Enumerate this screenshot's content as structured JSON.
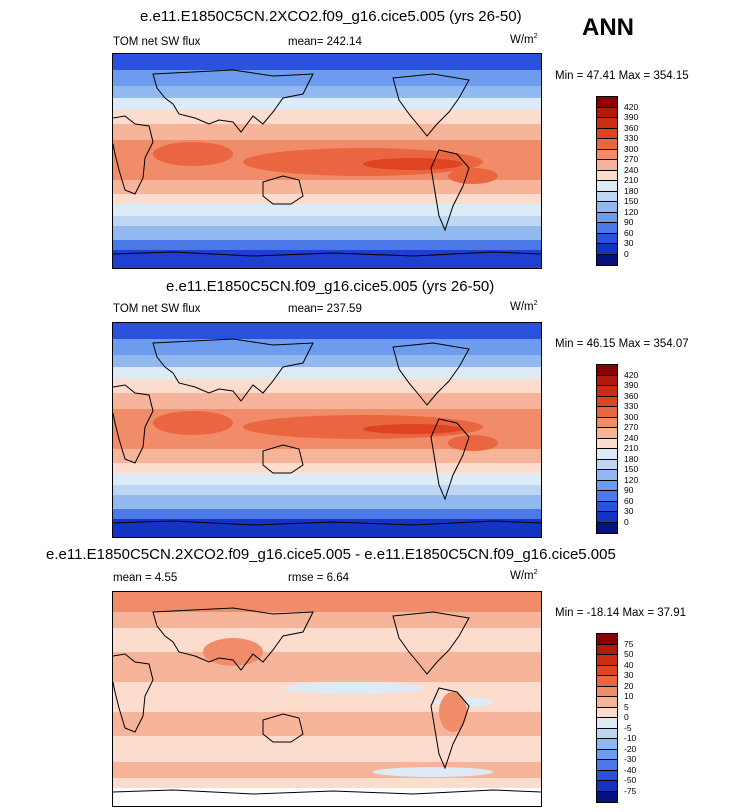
{
  "ann": "ANN",
  "panels": [
    {
      "title": "e.e11.E1850C5CN.2XCO2.f09_g16.cice5.005 (yrs 26-50)",
      "left": "TOM net SW flux",
      "center": "mean= 242.14",
      "units": "W/m",
      "units_sup": "2",
      "minmax": "Min = 47.41 Max = 354.15",
      "levels": [
        "420",
        "390",
        "360",
        "330",
        "300",
        "270",
        "240",
        "210",
        "180",
        "150",
        "120",
        "90",
        "60",
        "30",
        "0"
      ],
      "colors": [
        "#8b0000",
        "#b01a0c",
        "#cc2c14",
        "#df4422",
        "#ea6640",
        "#f18c6a",
        "#f6b59b",
        "#fcdccd",
        "#dcebf5",
        "#bdd6f2",
        "#91b9f0",
        "#6d9bed",
        "#4b79e8",
        "#2b52dc",
        "#1433c2",
        "#06127e"
      ]
    },
    {
      "title": "e.e11.E1850C5CN.f09_g16.cice5.005 (yrs 26-50)",
      "left": "TOM net SW flux",
      "center": "mean= 237.59",
      "units": "W/m",
      "units_sup": "2",
      "minmax": "Min = 46.15 Max = 354.07",
      "levels": [
        "420",
        "390",
        "360",
        "330",
        "300",
        "270",
        "240",
        "210",
        "180",
        "150",
        "120",
        "90",
        "60",
        "30",
        "0"
      ],
      "colors": [
        "#8b0000",
        "#b01a0c",
        "#cc2c14",
        "#df4422",
        "#ea6640",
        "#f18c6a",
        "#f6b59b",
        "#fcdccd",
        "#dcebf5",
        "#bdd6f2",
        "#91b9f0",
        "#6d9bed",
        "#4b79e8",
        "#2b52dc",
        "#1433c2",
        "#06127e"
      ]
    },
    {
      "title": "e.e11.E1850C5CN.2XCO2.f09_g16.cice5.005 - e.e11.E1850C5CN.f09_g16.cice5.005",
      "left": "mean =   4.55",
      "center": "rmse =   6.64",
      "units": "W/m",
      "units_sup": "2",
      "minmax": "Min = -18.14 Max =  37.91",
      "levels": [
        "75",
        "50",
        "40",
        "30",
        "20",
        "10",
        "5",
        "0",
        "-5",
        "-10",
        "-20",
        "-30",
        "-40",
        "-50",
        "-75"
      ],
      "colors": [
        "#8b0000",
        "#b01a0c",
        "#cc2c14",
        "#df4422",
        "#ea6640",
        "#f18c6a",
        "#f6b59b",
        "#fcdccd",
        "#dcebf5",
        "#bdd6f2",
        "#91b9f0",
        "#6d9bed",
        "#4b79e8",
        "#2b52dc",
        "#1433c2",
        "#06127e"
      ]
    }
  ]
}
